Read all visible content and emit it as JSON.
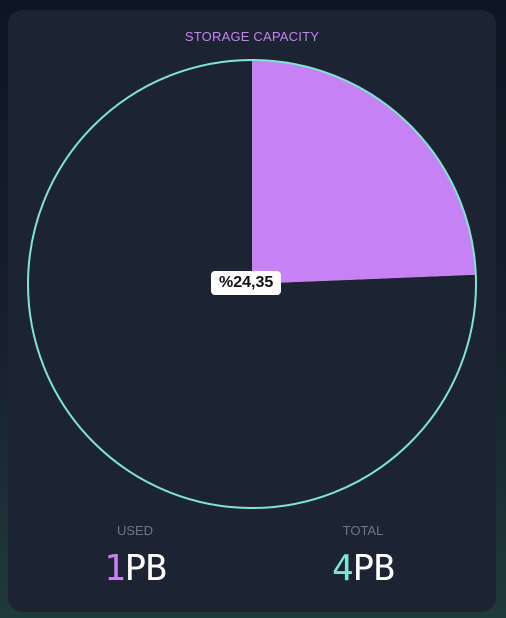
{
  "title": "STORAGE CAPACITY",
  "colors": {
    "used": "#c681f4",
    "ring": "#7fe3d6",
    "card": "#1c2431"
  },
  "chart_data": {
    "type": "pie",
    "title": "STORAGE CAPACITY",
    "slices": [
      {
        "value": 24.35,
        "color": "#c681f4"
      },
      {
        "value": 75.65,
        "color": "#1c2431"
      }
    ]
  },
  "percent_label": "%24,35",
  "used": {
    "label": "USED",
    "value": "1",
    "unit": "PB"
  },
  "total": {
    "label": "TOTAL",
    "value": "4",
    "unit": "PB"
  }
}
